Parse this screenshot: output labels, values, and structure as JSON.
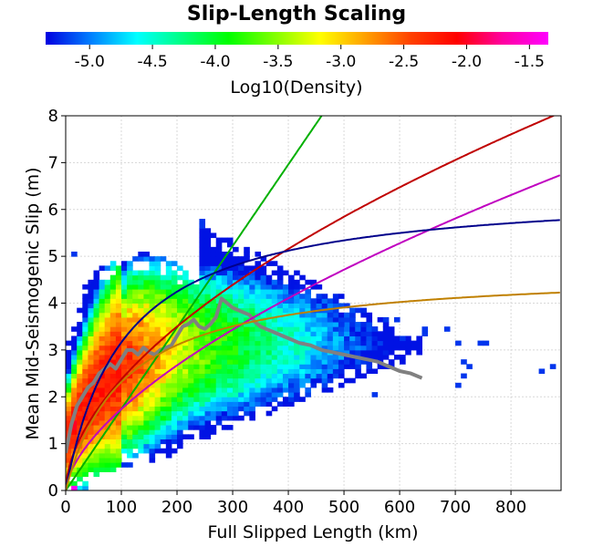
{
  "chart_data": {
    "type": "heatmap",
    "title": "Slip-Length Scaling",
    "xlabel": "Full Slipped Length (km)",
    "ylabel": "Mean Mid-Seismogenic Slip (m)",
    "xlim": [
      0,
      890
    ],
    "ylim": [
      0,
      8
    ],
    "xticks": [
      "0",
      "100",
      "200",
      "300",
      "400",
      "500",
      "600",
      "700",
      "800"
    ],
    "yticks": [
      "0",
      "1",
      "2",
      "3",
      "4",
      "5",
      "6",
      "7",
      "8"
    ],
    "grid": true,
    "colorbar": {
      "label": "Log10(Density)",
      "range": [
        -5.35,
        -1.35
      ],
      "ticks": [
        "-5.0",
        "-4.5",
        "-4.0",
        "-3.5",
        "-3.0",
        "-2.5",
        "-2.0",
        "-1.5"
      ],
      "colors": [
        "#0000e0",
        "#0080ff",
        "#00ffff",
        "#00ff80",
        "#00ff00",
        "#80ff00",
        "#ffff00",
        "#ffa000",
        "#ff4000",
        "#ff0000",
        "#ff00a0",
        "#ff00ff"
      ]
    },
    "series": [
      {
        "type": "line",
        "color": "#808080",
        "x": [
          0,
          10,
          20,
          30,
          40,
          50,
          60,
          70,
          80,
          90,
          100,
          110,
          120,
          130,
          140,
          150,
          160,
          170,
          180,
          190,
          200,
          210,
          220,
          230,
          240,
          250,
          260,
          270,
          280,
          290,
          300,
          310,
          320,
          330,
          340,
          350,
          360,
          370,
          380,
          390,
          400,
          420,
          440,
          460,
          480,
          500,
          520,
          540,
          560,
          580,
          600,
          620,
          640
        ],
        "y": [
          0.8,
          1.4,
          1.8,
          2.0,
          2.2,
          2.3,
          2.5,
          2.6,
          2.7,
          2.6,
          2.8,
          3.0,
          3.0,
          2.9,
          3.05,
          2.95,
          2.9,
          3.0,
          3.05,
          3.1,
          3.3,
          3.5,
          3.55,
          3.65,
          3.5,
          3.45,
          3.55,
          3.7,
          4.1,
          4.0,
          3.9,
          3.85,
          3.8,
          3.75,
          3.6,
          3.5,
          3.45,
          3.4,
          3.35,
          3.3,
          3.25,
          3.15,
          3.1,
          3.0,
          2.95,
          2.9,
          2.85,
          2.8,
          2.75,
          2.65,
          2.55,
          2.5,
          2.4
        ]
      },
      {
        "type": "line",
        "color": "#00b000",
        "model": "linear",
        "params": [
          0.0174
        ]
      },
      {
        "type": "line",
        "color": "#c00000",
        "model": "power",
        "params": [
          0.18,
          0.56
        ]
      },
      {
        "type": "line",
        "color": "#c000c0",
        "model": "power",
        "params": [
          0.1,
          0.62
        ]
      },
      {
        "type": "line",
        "color": "#00008b",
        "model": "saturating",
        "params": [
          6.45,
          104
        ]
      },
      {
        "type": "line",
        "color": "#c08000",
        "model": "saturating",
        "params": [
          4.72,
          104
        ]
      }
    ],
    "density": {
      "x_bin_width": 10,
      "y_bin_width": 0.1,
      "ridge_length": 115,
      "ridge_log_density": -2.0,
      "core_log_density": -1.4,
      "distant_outliers": [
        {
          "x": 10,
          "y": 5.1
        },
        {
          "x": 12,
          "y": 0.05
        },
        {
          "x": 240,
          "y": 5.75
        },
        {
          "x": 240,
          "y": 5.65
        },
        {
          "x": 440,
          "y": 4.0
        },
        {
          "x": 470,
          "y": 3.75
        },
        {
          "x": 490,
          "y": 3.55
        },
        {
          "x": 555,
          "y": 3.45
        },
        {
          "x": 555,
          "y": 2.05
        },
        {
          "x": 570,
          "y": 3.6
        },
        {
          "x": 595,
          "y": 3.6
        },
        {
          "x": 600,
          "y": 3.2
        },
        {
          "x": 640,
          "y": 3.45
        },
        {
          "x": 645,
          "y": 3.35
        },
        {
          "x": 685,
          "y": 3.45
        },
        {
          "x": 705,
          "y": 3.15
        },
        {
          "x": 715,
          "y": 2.75
        },
        {
          "x": 725,
          "y": 2.65
        },
        {
          "x": 745,
          "y": 3.15
        },
        {
          "x": 755,
          "y": 3.15
        },
        {
          "x": 700,
          "y": 2.3
        },
        {
          "x": 715,
          "y": 2.45
        },
        {
          "x": 855,
          "y": 2.55
        },
        {
          "x": 870,
          "y": 2.65
        }
      ]
    }
  }
}
